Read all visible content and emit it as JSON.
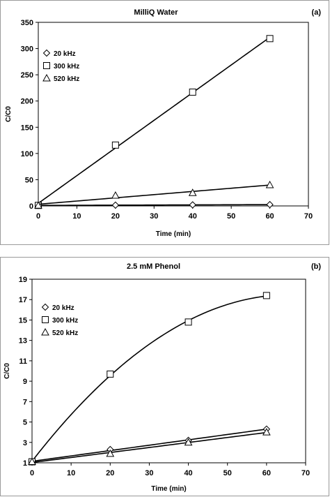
{
  "chart_data": [
    {
      "type": "scatter",
      "title": "MilliQ Water",
      "panel_label": "(a)",
      "xlabel": "Time (min)",
      "ylabel": "C/C0",
      "xlim": [
        0,
        70
      ],
      "ylim": [
        0,
        350
      ],
      "xticks": [
        0,
        10,
        20,
        30,
        40,
        50,
        60,
        70
      ],
      "yticks": [
        0,
        50,
        100,
        150,
        200,
        250,
        300,
        350
      ],
      "legend_position": "top-left",
      "series": [
        {
          "name": "20 kHz",
          "marker": "diamond",
          "x": [
            0,
            20,
            40,
            60
          ],
          "y": [
            1,
            1.5,
            2,
            2.5
          ],
          "trend": "linear"
        },
        {
          "name": "300 kHz",
          "marker": "square",
          "x": [
            0,
            20,
            40,
            60
          ],
          "y": [
            1,
            116,
            217,
            319
          ],
          "trend": "linear"
        },
        {
          "name": "520 kHz",
          "marker": "triangle",
          "x": [
            0,
            20,
            40,
            60
          ],
          "y": [
            1,
            20,
            25,
            40
          ],
          "trend": "linear"
        }
      ]
    },
    {
      "type": "scatter",
      "title": "2.5 mM Phenol",
      "panel_label": "(b)",
      "xlabel": "Time (min)",
      "ylabel": "C/C0",
      "xlim": [
        0,
        70
      ],
      "ylim": [
        1,
        19
      ],
      "xticks": [
        0,
        10,
        20,
        30,
        40,
        50,
        60,
        70
      ],
      "yticks": [
        1,
        3,
        5,
        7,
        9,
        11,
        13,
        15,
        17,
        19
      ],
      "legend_position": "top-left",
      "series": [
        {
          "name": "20 kHz",
          "marker": "diamond",
          "x": [
            0,
            20,
            40,
            60
          ],
          "y": [
            1.1,
            2.3,
            3.2,
            4.3
          ],
          "trend": "linear"
        },
        {
          "name": "300 kHz",
          "marker": "square",
          "x": [
            0,
            20,
            40,
            60
          ],
          "y": [
            1.1,
            9.7,
            14.8,
            17.4
          ],
          "trend": "polynomial"
        },
        {
          "name": "520 kHz",
          "marker": "triangle",
          "x": [
            0,
            20,
            40,
            60
          ],
          "y": [
            1.1,
            1.9,
            3.0,
            4.0
          ],
          "trend": "linear"
        }
      ]
    }
  ]
}
